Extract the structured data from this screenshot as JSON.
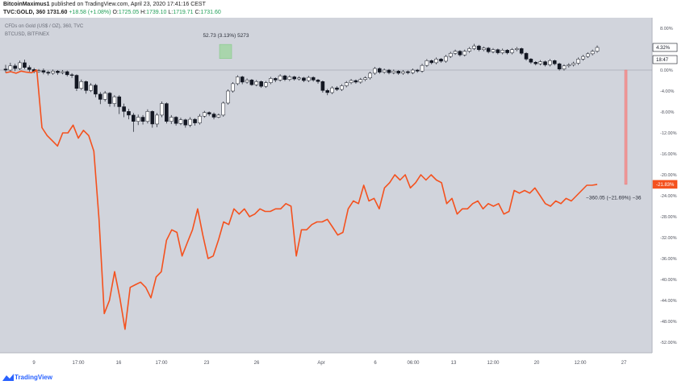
{
  "header": {
    "author": "BitcoinMaximus1",
    "published_text": "published on TradingView.com, April 23, 2020 17:41:16 CEST",
    "symbol": "TVC:GOLD, 360",
    "price": "1731.60",
    "change": "+18.58 (+1.08%)",
    "o_label": "O:",
    "o_val": "1725.05",
    "h_label": "H:",
    "h_val": "1739.10",
    "l_label": "L:",
    "l_val": "1719.71",
    "c_label": "C:",
    "c_val": "1731.60"
  },
  "legend": {
    "series1": "CFDs on Gold (US$ / OZ), 360, TVC",
    "series2": "BTCUSD, BITFINEX"
  },
  "measure": {
    "label": "52.73 (3.13%) 5273"
  },
  "btc_label": "−360.05 (−21.69%) −36",
  "footer": {
    "brand": "TradingView"
  },
  "colors": {
    "plot_bg": "#d1d4dc",
    "btc_line": "#f4511e",
    "candle_up": "#ffffff",
    "candle_down": "#131722",
    "zero_line": "#9598a1",
    "measure_green": "#a5d6a7",
    "measure_red": "#ef9a9a"
  },
  "chart_data": {
    "type": "line",
    "x_tick_labels": [
      "9",
      "17:00",
      "16",
      "17:00",
      "23",
      "26",
      "Apr",
      "6",
      "06:00",
      "13",
      "12:00",
      "20",
      "12:00",
      "27"
    ],
    "y_tick_labels": [
      "8.00%",
      "4.00%",
      "0.00%",
      "-4.00%",
      "-8.00%",
      "-12.00%",
      "-16.00%",
      "-20.00%",
      "-24.00%",
      "-28.00%",
      "-32.00%",
      "-36.00%",
      "-40.00%",
      "-44.00%",
      "-48.00%",
      "-52.00%"
    ],
    "y_ticks": [
      8,
      4,
      0,
      -4,
      -8,
      -12,
      -16,
      -20,
      -24,
      -28,
      -32,
      -36,
      -40,
      -44,
      -48,
      -52
    ],
    "ylim": [
      -54,
      10
    ],
    "price_badges": [
      {
        "label": "4.32%",
        "value": 4.32
      },
      {
        "label": "18:47",
        "value": 2.0
      },
      {
        "label": "-21.83%",
        "value": -21.83
      }
    ],
    "gold": {
      "name": "CFDs on Gold (US$ / OZ), 360, TVC",
      "candles": [
        [
          0.2,
          0.0,
          1.0,
          -0.5
        ],
        [
          0.0,
          0.8,
          1.4,
          -0.3
        ],
        [
          0.8,
          0.3,
          1.2,
          -0.2
        ],
        [
          0.3,
          1.4,
          1.8,
          0.0
        ],
        [
          1.4,
          0.5,
          2.0,
          0.2
        ],
        [
          0.5,
          0.1,
          0.9,
          -0.3
        ],
        [
          0.1,
          -0.3,
          0.4,
          -0.6
        ],
        [
          -0.3,
          -0.1,
          0.2,
          -0.5
        ],
        [
          -0.1,
          -0.4,
          0.3,
          -0.8
        ],
        [
          -0.4,
          -0.6,
          -0.1,
          -1.0
        ],
        [
          -0.6,
          -0.2,
          0.1,
          -0.9
        ],
        [
          -0.2,
          -0.5,
          0.0,
          -0.9
        ],
        [
          -0.5,
          -0.3,
          0.0,
          -0.8
        ],
        [
          -0.3,
          -0.9,
          -0.1,
          -1.2
        ],
        [
          -0.9,
          -1.0,
          -0.6,
          -1.5
        ],
        [
          -1.0,
          -3.5,
          -0.8,
          -4.0
        ],
        [
          -3.5,
          -2.2,
          -1.8,
          -3.8
        ],
        [
          -2.2,
          -3.9,
          -2.0,
          -4.5
        ],
        [
          -3.9,
          -2.9,
          -2.5,
          -4.2
        ],
        [
          -2.9,
          -4.6,
          -2.6,
          -5.2
        ],
        [
          -4.6,
          -5.6,
          -4.2,
          -6.5
        ],
        [
          -5.6,
          -4.4,
          -4.0,
          -6.0
        ],
        [
          -4.4,
          -6.4,
          -4.2,
          -7.0
        ],
        [
          -6.4,
          -5.1,
          -4.8,
          -7.0
        ],
        [
          -5.1,
          -7.0,
          -4.8,
          -8.4
        ],
        [
          -7.0,
          -7.9,
          -6.4,
          -9.0
        ],
        [
          -7.9,
          -8.6,
          -7.4,
          -9.4
        ],
        [
          -8.6,
          -9.8,
          -8.2,
          -11.8
        ],
        [
          -9.8,
          -9.0,
          -8.5,
          -10.5
        ],
        [
          -9.0,
          -9.8,
          -8.6,
          -10.4
        ],
        [
          -9.8,
          -7.9,
          -7.5,
          -10.2
        ],
        [
          -7.9,
          -10.3,
          -7.7,
          -11.0
        ],
        [
          -10.3,
          -8.6,
          -8.2,
          -10.9
        ],
        [
          -8.6,
          -6.4,
          -6.0,
          -9.0
        ],
        [
          -6.4,
          -9.8,
          -6.2,
          -10.2
        ],
        [
          -9.8,
          -9.0,
          -8.6,
          -10.3
        ],
        [
          -9.0,
          -10.2,
          -8.8,
          -10.6
        ],
        [
          -10.2,
          -9.5,
          -9.1,
          -10.5
        ],
        [
          -9.5,
          -10.5,
          -9.3,
          -11.0
        ],
        [
          -10.5,
          -9.4,
          -9.0,
          -10.9
        ],
        [
          -9.4,
          -10.1,
          -9.2,
          -10.6
        ],
        [
          -10.1,
          -8.8,
          -8.4,
          -10.4
        ],
        [
          -8.8,
          -8.1,
          -7.8,
          -9.1
        ],
        [
          -8.1,
          -8.4,
          -7.9,
          -8.8
        ],
        [
          -8.4,
          -9.0,
          -8.1,
          -9.4
        ],
        [
          -9.0,
          -8.6,
          -8.3,
          -9.2
        ],
        [
          -8.6,
          -6.3,
          -6.0,
          -8.9
        ],
        [
          -6.3,
          -4.0,
          -3.7,
          -6.6
        ],
        [
          -4.0,
          -2.6,
          -2.3,
          -4.3
        ],
        [
          -2.6,
          -1.3,
          -1.0,
          -2.9
        ],
        [
          -1.3,
          -2.3,
          -1.1,
          -2.7
        ],
        [
          -2.3,
          -1.9,
          -1.6,
          -2.6
        ],
        [
          -1.9,
          -2.8,
          -1.7,
          -3.0
        ],
        [
          -2.8,
          -2.2,
          -1.9,
          -3.1
        ],
        [
          -2.2,
          -3.1,
          -2.0,
          -3.4
        ],
        [
          -3.1,
          -2.4,
          -2.1,
          -3.4
        ],
        [
          -2.4,
          -1.6,
          -1.3,
          -2.7
        ],
        [
          -1.6,
          -1.9,
          -1.4,
          -2.3
        ],
        [
          -1.9,
          -1.1,
          -0.8,
          -2.2
        ],
        [
          -1.1,
          -1.8,
          -0.9,
          -2.1
        ],
        [
          -1.8,
          -1.3,
          -1.0,
          -2.1
        ],
        [
          -1.3,
          -1.7,
          -1.1,
          -2.0
        ],
        [
          -1.7,
          -1.5,
          -1.2,
          -2.0
        ],
        [
          -1.5,
          -2.0,
          -1.3,
          -2.3
        ],
        [
          -2.0,
          -1.4,
          -1.1,
          -2.3
        ],
        [
          -1.4,
          -1.9,
          -1.2,
          -2.2
        ],
        [
          -1.9,
          -2.2,
          -1.7,
          -2.6
        ],
        [
          -2.2,
          -3.9,
          -2.0,
          -4.3
        ],
        [
          -3.9,
          -4.3,
          -3.6,
          -4.8
        ],
        [
          -4.3,
          -3.4,
          -3.1,
          -4.6
        ],
        [
          -3.4,
          -3.7,
          -3.1,
          -4.0
        ],
        [
          -3.7,
          -3.0,
          -2.7,
          -4.0
        ],
        [
          -3.0,
          -2.4,
          -2.1,
          -3.3
        ],
        [
          -2.4,
          -2.0,
          -1.7,
          -2.7
        ],
        [
          -2.0,
          -2.3,
          -1.8,
          -2.6
        ],
        [
          -2.3,
          -1.8,
          -1.5,
          -2.6
        ],
        [
          -1.8,
          -1.5,
          -1.2,
          -2.1
        ],
        [
          -1.5,
          -0.6,
          -0.3,
          -1.8
        ],
        [
          -0.6,
          0.3,
          0.6,
          -0.9
        ],
        [
          0.3,
          -0.4,
          0.5,
          -0.7
        ],
        [
          -0.4,
          0.0,
          0.3,
          -0.7
        ],
        [
          0.0,
          -0.5,
          0.2,
          -0.8
        ],
        [
          -0.5,
          -0.2,
          0.1,
          -0.8
        ],
        [
          -0.2,
          -0.6,
          0.0,
          -0.9
        ],
        [
          -0.6,
          -0.3,
          0.0,
          -0.9
        ],
        [
          -0.3,
          -0.5,
          -0.1,
          -0.8
        ],
        [
          -0.5,
          0.0,
          0.3,
          -0.8
        ],
        [
          0.0,
          -0.2,
          0.2,
          -0.5
        ],
        [
          -0.2,
          0.9,
          1.2,
          -0.5
        ],
        [
          0.9,
          1.8,
          2.1,
          0.6
        ],
        [
          1.8,
          1.4,
          2.0,
          1.1
        ],
        [
          1.4,
          2.1,
          2.4,
          1.1
        ],
        [
          2.1,
          1.7,
          2.3,
          1.4
        ],
        [
          1.7,
          2.6,
          2.9,
          1.4
        ],
        [
          2.6,
          3.2,
          3.5,
          2.3
        ],
        [
          3.2,
          3.6,
          3.9,
          2.9
        ],
        [
          3.6,
          2.9,
          3.8,
          2.6
        ],
        [
          2.9,
          3.6,
          3.9,
          2.6
        ],
        [
          3.6,
          4.1,
          4.4,
          3.3
        ],
        [
          4.1,
          4.6,
          5.0,
          3.8
        ],
        [
          4.6,
          3.9,
          4.8,
          3.6
        ],
        [
          3.9,
          4.2,
          4.5,
          3.6
        ],
        [
          4.2,
          3.5,
          4.4,
          3.2
        ],
        [
          3.5,
          3.9,
          4.2,
          3.2
        ],
        [
          3.9,
          3.3,
          4.1,
          3.0
        ],
        [
          3.3,
          3.8,
          4.1,
          3.0
        ],
        [
          3.8,
          3.3,
          4.0,
          3.0
        ],
        [
          3.3,
          3.9,
          4.2,
          3.0
        ],
        [
          3.9,
          4.1,
          4.4,
          3.6
        ],
        [
          4.1,
          3.2,
          4.3,
          2.9
        ],
        [
          3.2,
          2.1,
          3.4,
          1.8
        ],
        [
          2.1,
          1.5,
          2.3,
          1.2
        ],
        [
          1.5,
          1.2,
          1.7,
          0.9
        ],
        [
          1.2,
          1.6,
          1.9,
          0.9
        ],
        [
          1.6,
          1.0,
          1.8,
          0.7
        ],
        [
          1.0,
          1.8,
          2.1,
          0.7
        ],
        [
          1.8,
          1.2,
          2.0,
          0.9
        ],
        [
          1.2,
          0.2,
          1.4,
          -0.1
        ],
        [
          0.2,
          0.8,
          1.1,
          -0.1
        ],
        [
          0.8,
          1.0,
          1.3,
          0.5
        ],
        [
          1.0,
          1.3,
          1.6,
          0.7
        ],
        [
          1.3,
          2.1,
          2.4,
          1.0
        ],
        [
          2.1,
          2.6,
          2.9,
          1.8
        ],
        [
          2.6,
          3.1,
          3.4,
          2.3
        ],
        [
          3.1,
          3.6,
          3.9,
          2.8
        ],
        [
          3.6,
          4.32,
          4.7,
          3.3
        ]
      ]
    },
    "btc": {
      "name": "BTCUSD, BITFINEX",
      "values": [
        -0.5,
        -0.3,
        -0.6,
        -0.2,
        -0.4,
        -0.5,
        0.0,
        -11.0,
        -12.5,
        -13.5,
        -14.5,
        -12.0,
        -12.0,
        -10.5,
        -13.0,
        -11.5,
        -12.5,
        -15.5,
        -28.5,
        -46.5,
        -44.0,
        -38.5,
        -43.5,
        -49.5,
        -41.5,
        -41.0,
        -40.5,
        -41.5,
        -43.5,
        -39.5,
        -38.5,
        -32.5,
        -30.5,
        -31.0,
        -35.5,
        -33.0,
        -30.5,
        -26.5,
        -31.5,
        -36.0,
        -35.5,
        -32.5,
        -29.0,
        -29.5,
        -26.5,
        -27.5,
        -26.5,
        -28.0,
        -27.5,
        -26.5,
        -27.0,
        -27.0,
        -26.5,
        -26.5,
        -25.5,
        -26.0,
        -35.5,
        -30.5,
        -30.5,
        -29.5,
        -29.0,
        -29.0,
        -28.5,
        -30.0,
        -31.5,
        -31.0,
        -26.5,
        -25.0,
        -25.5,
        -22.0,
        -25.0,
        -24.5,
        -26.5,
        -22.5,
        -21.5,
        -20.0,
        -21.0,
        -20.0,
        -22.5,
        -21.5,
        -20.0,
        -21.0,
        -20.0,
        -21.0,
        -21.5,
        -25.5,
        -24.5,
        -27.5,
        -26.5,
        -26.5,
        -25.5,
        -25.0,
        -26.5,
        -25.5,
        -26.0,
        -25.5,
        -27.5,
        -27.0,
        -23.0,
        -23.5,
        -23.0,
        -23.5,
        -22.5,
        -24.0,
        -25.5,
        -26.0,
        -25.0,
        -25.5,
        -24.5,
        -25.0,
        -24.0,
        -23.0,
        -22.0,
        -22.0,
        -21.83
      ]
    }
  }
}
